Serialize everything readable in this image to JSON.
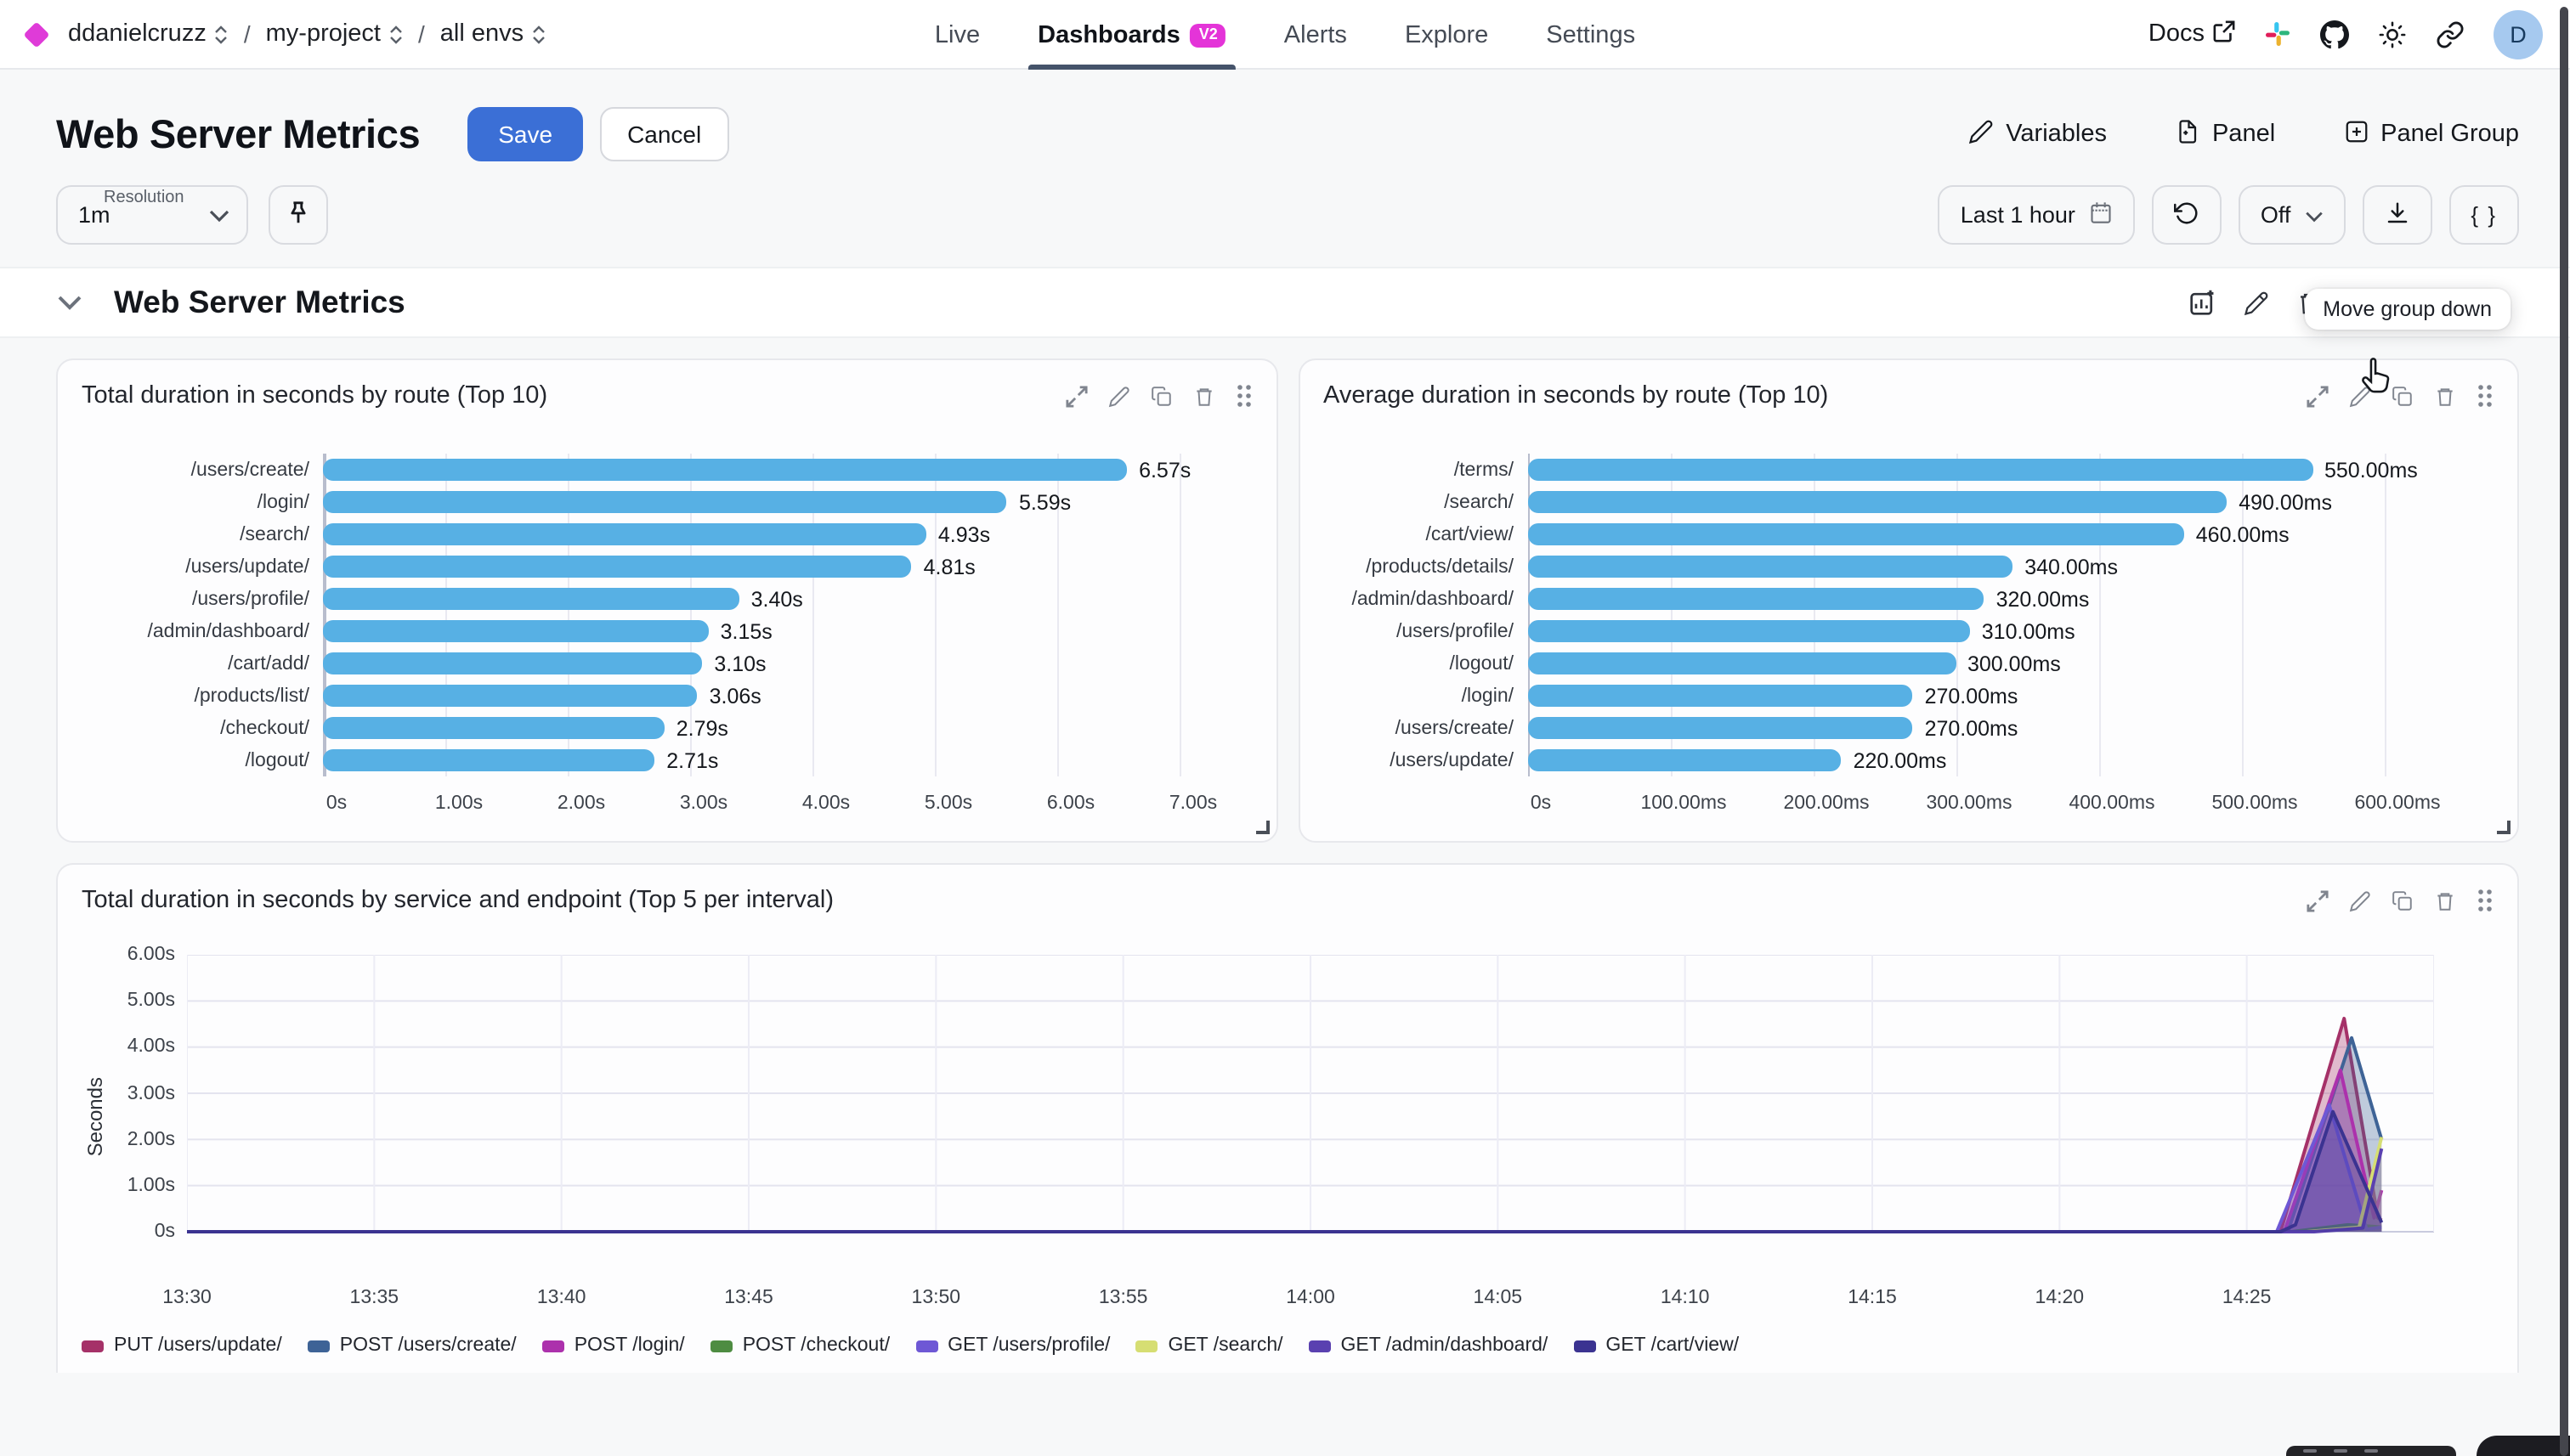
{
  "topbar": {
    "org": "ddanielcruzz",
    "separator": "/",
    "project": "my-project",
    "env": "all envs",
    "nav": [
      {
        "label": "Live"
      },
      {
        "label": "Dashboards",
        "badge": "V2"
      },
      {
        "label": "Alerts"
      },
      {
        "label": "Explore"
      },
      {
        "label": "Settings"
      }
    ],
    "docs_label": "Docs",
    "avatar_initial": "D"
  },
  "header": {
    "title": "Web Server Metrics",
    "save_label": "Save",
    "cancel_label": "Cancel",
    "actions": {
      "variables": "Variables",
      "panel": "Panel",
      "panel_group": "Panel Group"
    }
  },
  "controls": {
    "resolution_label": "Resolution",
    "resolution_value": "1m",
    "time_range": "Last 1 hour",
    "refresh_interval": "Off",
    "braces_label": "{ }",
    "tooltip": "Move group down"
  },
  "group": {
    "title": "Web Server Metrics"
  },
  "colors": {
    "accent_blue": "#3b6fd6",
    "brand_magenta": "#e434d8",
    "bar_blue": "#57b0e4",
    "avatar_bg": "#a6c9ef"
  },
  "chart_data": [
    {
      "type": "bar",
      "orientation": "horizontal",
      "title": "Total duration in seconds by route (Top 10)",
      "categories": [
        "/users/create/",
        "/login/",
        "/search/",
        "/users/update/",
        "/users/profile/",
        "/admin/dashboard/",
        "/cart/add/",
        "/products/list/",
        "/checkout/",
        "/logout/"
      ],
      "values": [
        6.57,
        5.59,
        4.93,
        4.81,
        3.4,
        3.15,
        3.1,
        3.06,
        2.79,
        2.71
      ],
      "value_labels": [
        "6.57s",
        "5.59s",
        "4.93s",
        "4.81s",
        "3.40s",
        "3.15s",
        "3.10s",
        "3.06s",
        "2.79s",
        "2.71s"
      ],
      "xticks": [
        "0s",
        "1.00s",
        "2.00s",
        "3.00s",
        "4.00s",
        "5.00s",
        "6.00s",
        "7.00s"
      ],
      "xmax": 7,
      "bar_color": "#57b0e4",
      "grid": true
    },
    {
      "type": "bar",
      "orientation": "horizontal",
      "title": "Average duration in seconds by route (Top 10)",
      "categories": [
        "/terms/",
        "/search/",
        "/cart/view/",
        "/products/details/",
        "/admin/dashboard/",
        "/users/profile/",
        "/logout/",
        "/login/",
        "/users/create/",
        "/users/update/"
      ],
      "values": [
        550,
        490,
        460,
        340,
        320,
        310,
        300,
        270,
        270,
        220
      ],
      "value_labels": [
        "550.00ms",
        "490.00ms",
        "460.00ms",
        "340.00ms",
        "320.00ms",
        "310.00ms",
        "300.00ms",
        "270.00ms",
        "270.00ms",
        "220.00ms"
      ],
      "xticks": [
        "0s",
        "100.00ms",
        "200.00ms",
        "300.00ms",
        "400.00ms",
        "500.00ms",
        "600.00ms"
      ],
      "xmax": 600,
      "bar_color": "#57b0e4",
      "grid": true
    },
    {
      "type": "area",
      "title": "Total duration in seconds by service and endpoint (Top 5 per interval)",
      "ylabel": "Seconds",
      "ymax": 6,
      "yticks": [
        "0s",
        "1.00s",
        "2.00s",
        "3.00s",
        "4.00s",
        "5.00s",
        "6.00s"
      ],
      "xticks": [
        {
          "m": 0,
          "label": "13:30"
        },
        {
          "m": 5,
          "label": "13:35"
        },
        {
          "m": 10,
          "label": "13:40"
        },
        {
          "m": 15,
          "label": "13:45"
        },
        {
          "m": 20,
          "label": "13:50"
        },
        {
          "m": 25,
          "label": "13:55"
        },
        {
          "m": 30,
          "label": "14:00"
        },
        {
          "m": 35,
          "label": "14:05"
        },
        {
          "m": 40,
          "label": "14:10"
        },
        {
          "m": 45,
          "label": "14:15"
        },
        {
          "m": 50,
          "label": "14:20"
        },
        {
          "m": 55,
          "label": "14:25"
        }
      ],
      "xmax_minutes": 60,
      "grid": true,
      "legend_position": "bottom",
      "series": [
        {
          "name": "PUT /users/update/",
          "color": "#a53168",
          "points": [
            [
              0,
              0
            ],
            [
              55.9,
              0
            ],
            [
              57.6,
              4.62
            ],
            [
              58.5,
              0.3
            ],
            [
              58.6,
              0.25
            ]
          ]
        },
        {
          "name": "POST /users/create/",
          "color": "#3e6396",
          "points": [
            [
              0,
              0
            ],
            [
              56.1,
              0
            ],
            [
              57.8,
              4.2
            ],
            [
              58.6,
              2.0
            ]
          ]
        },
        {
          "name": "POST /login/",
          "color": "#ac31ac",
          "points": [
            [
              0,
              0
            ],
            [
              56.0,
              0
            ],
            [
              57.5,
              3.5
            ],
            [
              58.4,
              0.3
            ],
            [
              58.6,
              0.9
            ]
          ]
        },
        {
          "name": "POST /checkout/",
          "color": "#4e8c42",
          "points": [
            [
              0,
              0
            ],
            [
              56.2,
              0
            ],
            [
              57.7,
              0.15
            ],
            [
              58.6,
              0.1
            ]
          ]
        },
        {
          "name": "GET /users/profile/",
          "color": "#6e58d5",
          "points": [
            [
              0,
              0
            ],
            [
              55.8,
              0
            ],
            [
              57.2,
              2.75
            ],
            [
              58.2,
              0.05
            ],
            [
              58.6,
              0.1
            ]
          ]
        },
        {
          "name": "GET /search/",
          "color": "#d6de73",
          "points": [
            [
              0,
              0
            ],
            [
              56.6,
              0
            ],
            [
              58.0,
              0.1
            ],
            [
              58.6,
              2.05
            ]
          ]
        },
        {
          "name": "GET /admin/dashboard/",
          "color": "#5a41b0",
          "points": [
            [
              0,
              0
            ],
            [
              56.8,
              0
            ],
            [
              58.1,
              0.08
            ],
            [
              58.6,
              1.8
            ]
          ]
        },
        {
          "name": "GET /cart/view/",
          "color": "#3b3391",
          "points": [
            [
              0,
              0
            ],
            [
              55.9,
              0
            ],
            [
              56.3,
              0.15
            ],
            [
              57.3,
              2.6
            ],
            [
              58.6,
              0.2
            ]
          ]
        }
      ]
    }
  ]
}
